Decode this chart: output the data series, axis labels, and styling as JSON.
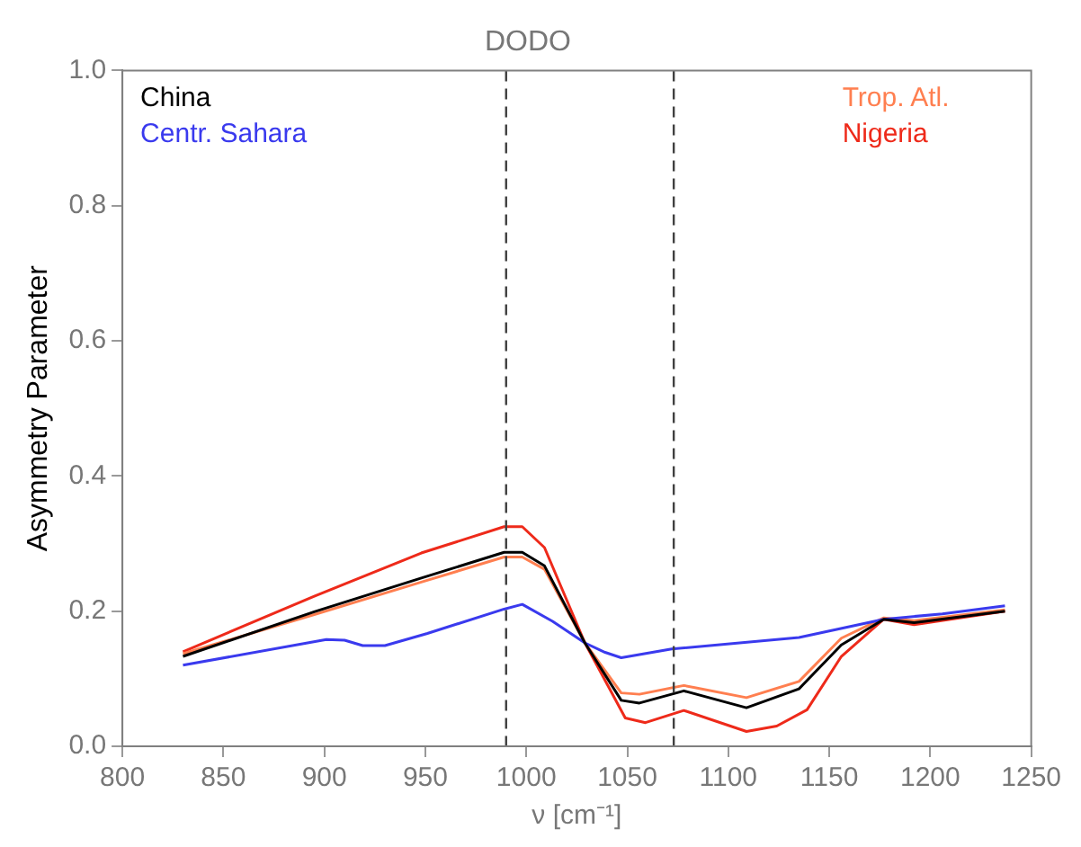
{
  "chart_data": {
    "type": "line",
    "title": "DODO",
    "xlabel": "ν [cm⁻¹]",
    "ylabel": "Asymmetry Parameter",
    "xlim": [
      800,
      1250
    ],
    "xticks": [
      800,
      850,
      900,
      950,
      1000,
      1050,
      1100,
      1150,
      1200,
      1250
    ],
    "ylim": [
      0,
      1
    ],
    "yticks": [
      {
        "value": 0,
        "label": "0.0"
      },
      {
        "value": 0.2,
        "label": "0.2"
      },
      {
        "value": 0.4,
        "label": "0.4"
      },
      {
        "value": 0.6,
        "label": "0.6"
      },
      {
        "value": 0.8,
        "label": "0.8"
      },
      {
        "value": 1,
        "label": "1.0"
      }
    ],
    "grid": false,
    "legend": "top",
    "marker": "none",
    "line_style": "solid",
    "ref_lines": [
      {
        "axis": "x",
        "value": 990,
        "color": "#404040",
        "line_style": "dashed"
      },
      {
        "axis": "x",
        "value": 1073,
        "color": "#404040",
        "line_style": "dashed"
      }
    ],
    "series": [
      {
        "name": "China",
        "color": "#000000",
        "x": [
          830,
          895,
          948,
          989,
          998,
          1009,
          1029,
          1047,
          1056,
          1078,
          1109,
          1135,
          1156,
          1177,
          1192,
          1237
        ],
        "values": [
          0.133,
          0.199,
          0.249,
          0.287,
          0.287,
          0.267,
          0.153,
          0.068,
          0.064,
          0.082,
          0.057,
          0.085,
          0.15,
          0.188,
          0.183,
          0.2
        ]
      },
      {
        "name": "Centr. Sahara",
        "color": "#3a3aee",
        "x": [
          830,
          901,
          910,
          919,
          930,
          951,
          989,
          998,
          1013,
          1029,
          1039,
          1047,
          1072,
          1135,
          1177,
          1206,
          1237
        ],
        "values": [
          0.12,
          0.158,
          0.157,
          0.149,
          0.149,
          0.167,
          0.203,
          0.21,
          0.185,
          0.153,
          0.139,
          0.131,
          0.144,
          0.161,
          0.188,
          0.196,
          0.208
        ]
      },
      {
        "name": "Trop. Atl.",
        "color": "#ff7f50",
        "x": [
          830,
          895,
          948,
          989,
          998,
          1009,
          1029,
          1047,
          1056,
          1078,
          1109,
          1135,
          1156,
          1177,
          1192,
          1237
        ],
        "values": [
          0.137,
          0.195,
          0.243,
          0.28,
          0.28,
          0.262,
          0.153,
          0.079,
          0.077,
          0.09,
          0.072,
          0.096,
          0.16,
          0.19,
          0.186,
          0.202
        ]
      },
      {
        "name": "Nigeria",
        "color": "#ee2a1a",
        "x": [
          830,
          895,
          948,
          989,
          998,
          1009,
          1029,
          1049,
          1059,
          1078,
          1109,
          1124,
          1139,
          1156,
          1177,
          1192,
          1237
        ],
        "values": [
          0.14,
          0.222,
          0.286,
          0.325,
          0.325,
          0.294,
          0.153,
          0.042,
          0.035,
          0.053,
          0.022,
          0.03,
          0.054,
          0.133,
          0.188,
          0.18,
          0.2
        ]
      }
    ]
  }
}
